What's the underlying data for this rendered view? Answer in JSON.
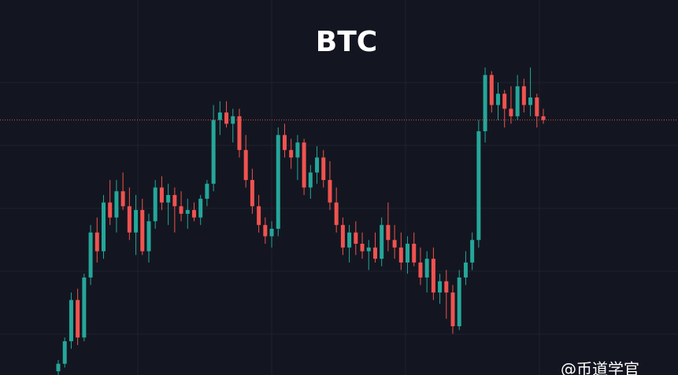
{
  "chart_data": {
    "type": "candlestick",
    "title": "BTC",
    "watermark": "@币道学官",
    "ylim": [
      0,
      100
    ],
    "up_color": "#26a69a",
    "down_color": "#ef5350",
    "last_price_line": true,
    "open": [
      1,
      3,
      9,
      20,
      10,
      26,
      38,
      33,
      46,
      42,
      49,
      45,
      38,
      44,
      33,
      41,
      50,
      46,
      48,
      45,
      43,
      44,
      42,
      47,
      51,
      68,
      70,
      67,
      69,
      60,
      52,
      45,
      40,
      37,
      39,
      64,
      60,
      58,
      62,
      50,
      54,
      58,
      52,
      46,
      40,
      34,
      38,
      35,
      33,
      34,
      31,
      40,
      36,
      34,
      30,
      35,
      30,
      26,
      31,
      22,
      25,
      22,
      13,
      26,
      30,
      36,
      65,
      80,
      72,
      75,
      71,
      69,
      77,
      72,
      74,
      69
    ],
    "high": [
      4,
      10,
      22,
      23,
      27,
      40,
      42,
      48,
      52,
      52,
      54,
      50,
      48,
      47,
      43,
      52,
      53,
      51,
      50,
      49,
      47,
      46,
      48,
      52,
      72,
      73,
      73,
      71,
      71,
      64,
      55,
      48,
      42,
      41,
      66,
      67,
      63,
      64,
      63,
      56,
      61,
      60,
      57,
      50,
      42,
      40,
      41,
      38,
      36,
      38,
      42,
      46,
      40,
      38,
      37,
      38,
      34,
      33,
      34,
      27,
      28,
      24,
      28,
      33,
      38,
      68,
      82,
      81,
      78,
      76,
      77,
      80,
      79,
      82,
      75,
      71
    ],
    "low": [
      0,
      2,
      7,
      8,
      9,
      24,
      30,
      31,
      40,
      38,
      44,
      36,
      32,
      32,
      30,
      39,
      44,
      40,
      38,
      41,
      39,
      41,
      40,
      45,
      49,
      64,
      66,
      62,
      58,
      50,
      43,
      38,
      35,
      34,
      37,
      58,
      55,
      52,
      48,
      47,
      51,
      50,
      44,
      38,
      32,
      30,
      32,
      31,
      28,
      30,
      29,
      33,
      31,
      28,
      27,
      29,
      24,
      22,
      20,
      19,
      15,
      11,
      12,
      24,
      28,
      34,
      62,
      70,
      68,
      66,
      67,
      68,
      70,
      69,
      66,
      67
    ],
    "close": [
      3,
      9,
      20,
      10,
      26,
      38,
      33,
      46,
      42,
      49,
      45,
      38,
      44,
      33,
      41,
      50,
      46,
      48,
      45,
      43,
      44,
      42,
      47,
      51,
      68,
      70,
      67,
      69,
      60,
      52,
      45,
      40,
      37,
      39,
      64,
      60,
      58,
      62,
      50,
      54,
      58,
      52,
      46,
      40,
      34,
      38,
      35,
      33,
      34,
      31,
      40,
      36,
      34,
      30,
      35,
      30,
      26,
      31,
      22,
      25,
      22,
      13,
      26,
      30,
      36,
      65,
      80,
      72,
      75,
      71,
      69,
      77,
      72,
      74,
      69,
      68
    ]
  }
}
